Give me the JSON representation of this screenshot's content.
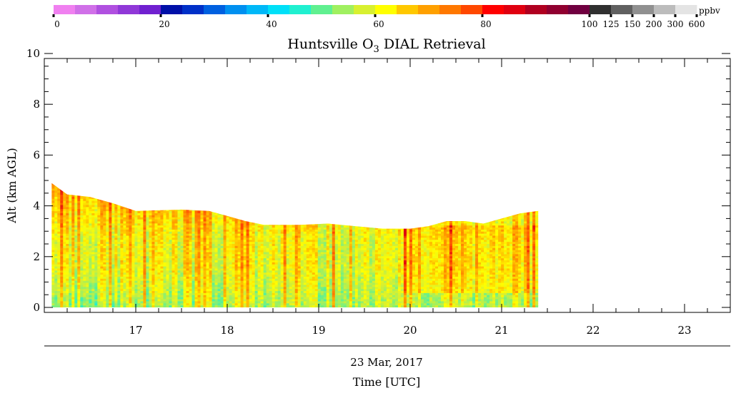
{
  "chart_data": {
    "type": "heatmap",
    "title": "Huntsville O",
    "title_sub": "3",
    "title_rest": " DIAL Retrieval",
    "ylabel": "Alt (km AGL)",
    "date_label": "23 Mar, 2017",
    "xlabel": "Time [UTC]",
    "xlim": [
      16.0,
      23.5
    ],
    "ylim": [
      0,
      10
    ],
    "x_ticks": [
      "17",
      "18",
      "19",
      "20",
      "21",
      "22",
      "23"
    ],
    "y_ticks": [
      "0",
      "2",
      "4",
      "6",
      "8",
      "10"
    ],
    "colorbar": {
      "unit": "ppbv",
      "linear_labels": [
        "0",
        "20",
        "40",
        "60",
        "80"
      ],
      "extended_labels": [
        "100",
        "125",
        "150",
        "200",
        "300",
        "600"
      ],
      "linear_colors": [
        "#f080f0",
        "#d070e8",
        "#b050e0",
        "#9038d8",
        "#7020d0",
        "#0010a8",
        "#0030c8",
        "#0060e0",
        "#0090f0",
        "#00b8f8",
        "#00e0f8",
        "#20f0d0",
        "#60f090",
        "#a0f060",
        "#d8f030",
        "#ffff00",
        "#ffc800",
        "#ffa000",
        "#ff7800",
        "#ff4800",
        "#ff0000",
        "#e00010",
        "#b00020",
        "#900030",
        "#700040"
      ],
      "extended_colors": [
        "#303030",
        "#606060",
        "#909090",
        "#bcbcbc",
        "#e4e4e4"
      ]
    },
    "data_extent": {
      "x_start": 16.08,
      "x_end": 21.4,
      "top_altitude_km": [
        [
          16.08,
          4.9
        ],
        [
          16.25,
          4.45
        ],
        [
          16.5,
          4.35
        ],
        [
          16.75,
          4.1
        ],
        [
          17.0,
          3.8
        ],
        [
          17.5,
          3.85
        ],
        [
          17.8,
          3.8
        ],
        [
          18.0,
          3.6
        ],
        [
          18.2,
          3.4
        ],
        [
          18.4,
          3.25
        ],
        [
          18.8,
          3.25
        ],
        [
          19.1,
          3.3
        ],
        [
          19.4,
          3.2
        ],
        [
          19.7,
          3.1
        ],
        [
          20.0,
          3.1
        ],
        [
          20.2,
          3.2
        ],
        [
          20.4,
          3.4
        ],
        [
          20.6,
          3.4
        ],
        [
          20.8,
          3.3
        ],
        [
          21.0,
          3.5
        ],
        [
          21.2,
          3.7
        ],
        [
          21.4,
          3.8
        ]
      ],
      "value_range_ppbv": [
        40,
        80
      ],
      "typical_value_ppbv": 58
    }
  }
}
